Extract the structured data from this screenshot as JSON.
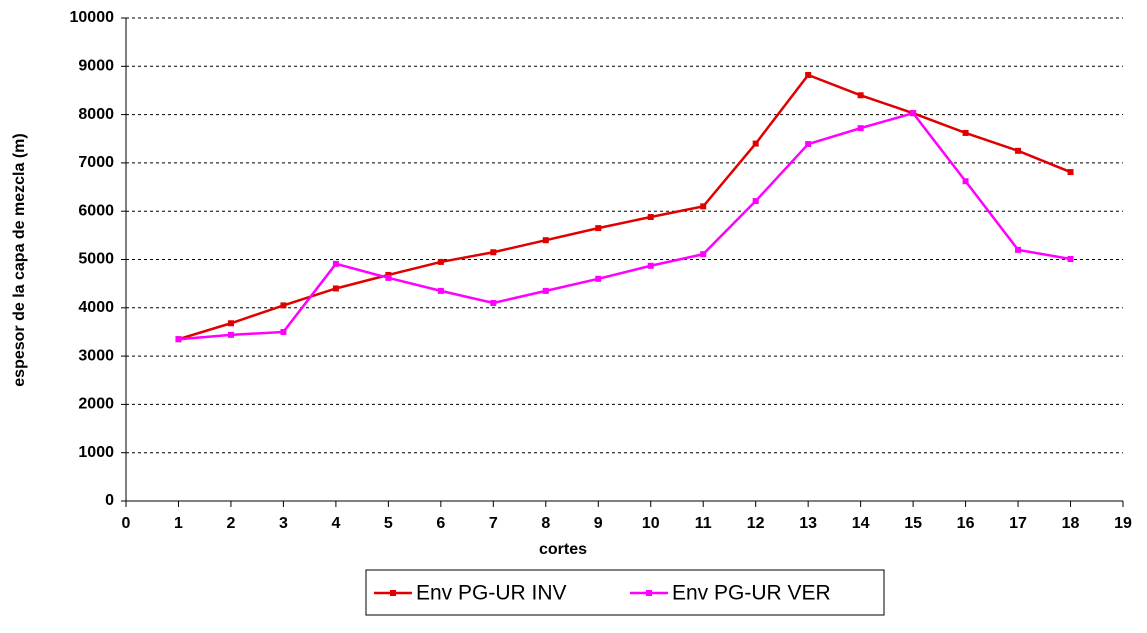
{
  "chart_data": {
    "type": "line",
    "xlabel": "cortes",
    "ylabel": "espesor de la capa de mezcla (m)",
    "x": [
      1,
      2,
      3,
      4,
      5,
      6,
      7,
      8,
      9,
      10,
      11,
      12,
      13,
      14,
      15,
      16,
      17,
      18
    ],
    "series": [
      {
        "name": "Env PG-UR INV",
        "color": "#e00000",
        "values": [
          3350,
          3680,
          4050,
          4400,
          4680,
          4950,
          5150,
          5400,
          5650,
          5880,
          6100,
          7400,
          8820,
          8400,
          8030,
          7620,
          7250,
          6810
        ]
      },
      {
        "name": "Env PG-UR VER",
        "color": "#ff00ff",
        "values": [
          3350,
          3440,
          3500,
          4910,
          4620,
          4350,
          4100,
          4350,
          4600,
          4870,
          5110,
          6210,
          7390,
          7720,
          8030,
          6620,
          5200,
          5010
        ]
      }
    ],
    "xlim": [
      0,
      19
    ],
    "xticks": [
      0,
      1,
      2,
      3,
      4,
      5,
      6,
      7,
      8,
      9,
      10,
      11,
      12,
      13,
      14,
      15,
      16,
      17,
      18,
      19
    ],
    "ylim": [
      0,
      10000
    ],
    "yticks": [
      0,
      1000,
      2000,
      3000,
      4000,
      5000,
      6000,
      7000,
      8000,
      9000,
      10000
    ],
    "grid": true,
    "legend": "bottom"
  }
}
